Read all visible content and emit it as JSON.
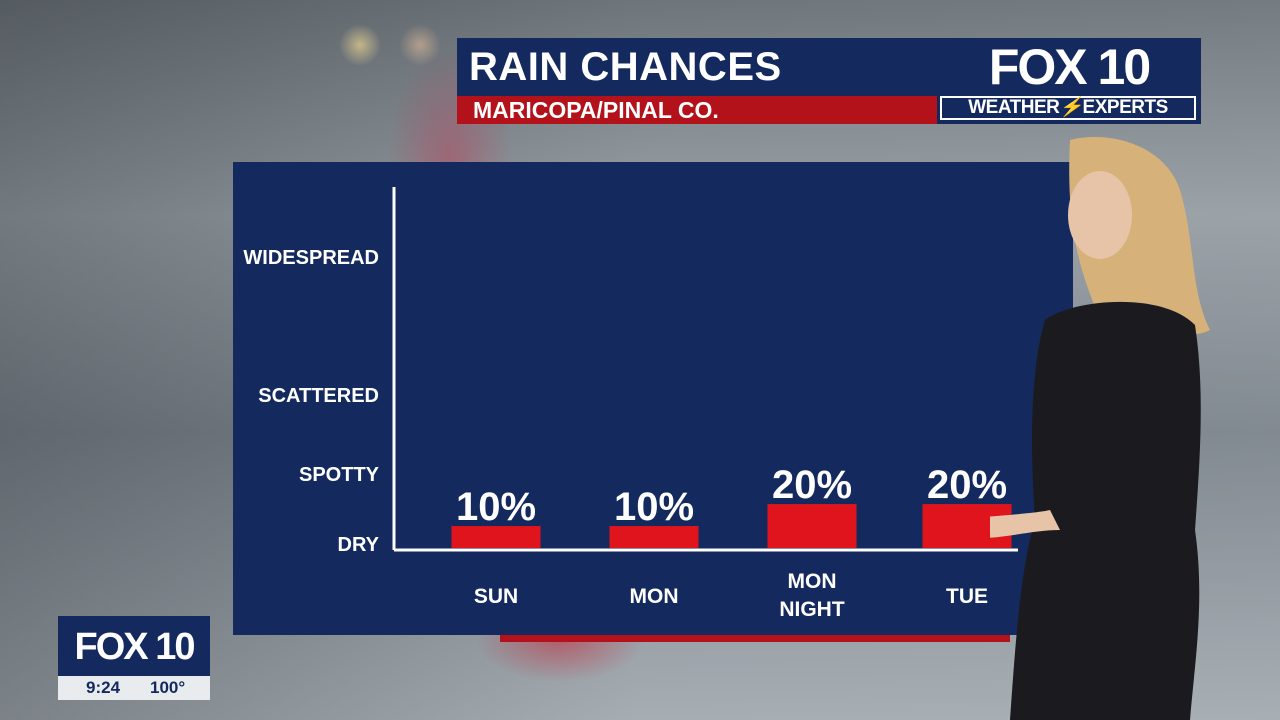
{
  "header": {
    "title": "RAIN CHANCES",
    "subtitle": "MARICOPA/PINAL CO.",
    "logo": "FOX 10",
    "logo_tag_left": "WEATHER",
    "logo_tag_right": "EXPERTS"
  },
  "bug": {
    "logo": "FOX 10",
    "time": "9:24",
    "temp": "100°"
  },
  "colors": {
    "navy": "#142a5e",
    "red": "#b3121a",
    "bar": "#e0141c"
  },
  "chart_data": {
    "type": "bar",
    "title": "RAIN CHANCES",
    "subtitle": "MARICOPA/PINAL CO.",
    "categories": [
      [
        "SUN"
      ],
      [
        "MON"
      ],
      [
        "MON",
        "NIGHT"
      ],
      [
        "TUE"
      ]
    ],
    "values": [
      10,
      10,
      20,
      20
    ],
    "value_labels": [
      "10%",
      "10%",
      "20%",
      "20%"
    ],
    "y_levels": [
      "DRY",
      "SPOTTY",
      "SCATTERED",
      "WIDESPREAD"
    ],
    "ylim": [
      0,
      100
    ],
    "grid": false,
    "legend": "none"
  }
}
